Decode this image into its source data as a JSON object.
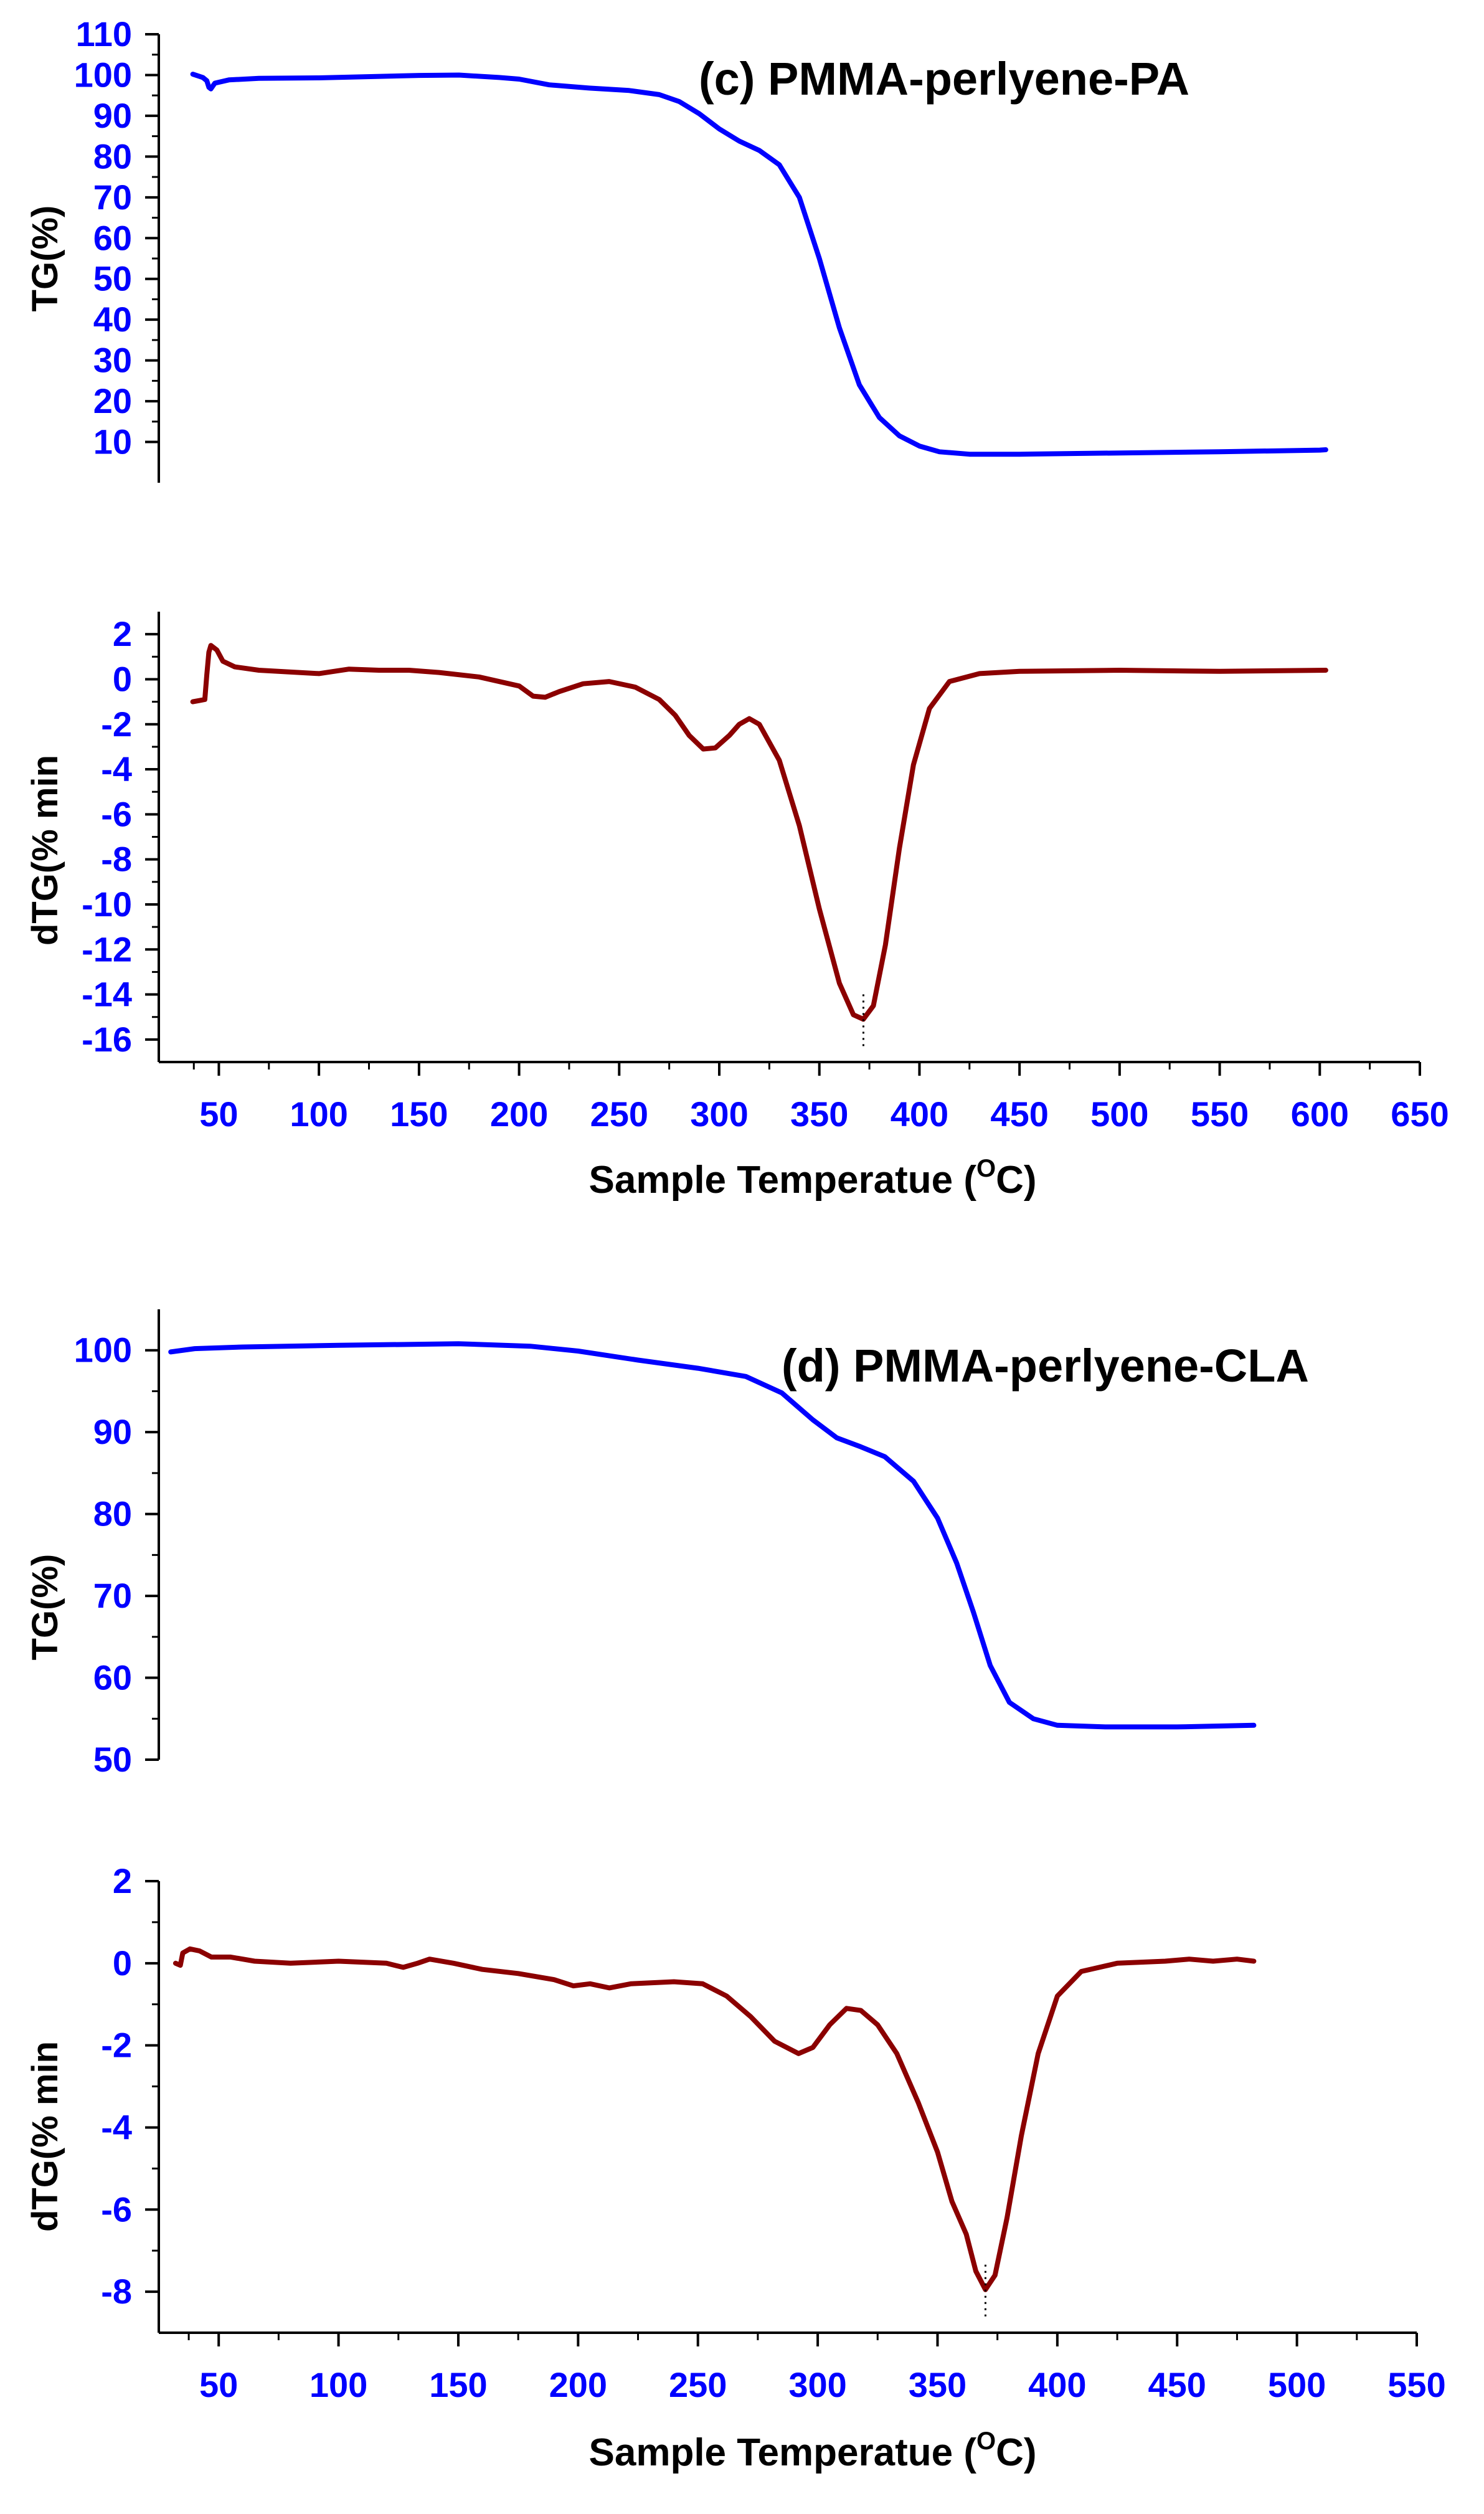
{
  "chart_data": [
    {
      "panel": "c",
      "title": "(c)  PMMA-perlyene-PA",
      "xlabel_main": "Sample Temperatue (",
      "xlabel_sup": "O",
      "xlabel_tail": "C)",
      "xlim": [
        20,
        650
      ],
      "xticks": [
        50,
        100,
        150,
        200,
        250,
        300,
        350,
        400,
        450,
        500,
        550,
        600,
        650
      ],
      "tg": {
        "type": "line",
        "ylabel": "TG(%)",
        "ylim": [
          0,
          110
        ],
        "yticks": [
          10,
          20,
          30,
          40,
          50,
          60,
          70,
          80,
          90,
          100,
          110
        ],
        "color": "#0000ff",
        "points": [
          [
            37,
            100.2
          ],
          [
            42,
            99.4
          ],
          [
            44,
            98.6
          ],
          [
            45,
            97.0
          ],
          [
            46,
            96.6
          ],
          [
            48,
            98.0
          ],
          [
            55,
            98.8
          ],
          [
            70,
            99.2
          ],
          [
            100,
            99.3
          ],
          [
            150,
            99.9
          ],
          [
            170,
            100.0
          ],
          [
            190,
            99.4
          ],
          [
            200,
            99.0
          ],
          [
            215,
            97.6
          ],
          [
            235,
            96.8
          ],
          [
            255,
            96.2
          ],
          [
            270,
            95.2
          ],
          [
            280,
            93.5
          ],
          [
            290,
            90.5
          ],
          [
            300,
            86.8
          ],
          [
            310,
            83.8
          ],
          [
            320,
            81.5
          ],
          [
            330,
            78.0
          ],
          [
            340,
            70.0
          ],
          [
            350,
            55.0
          ],
          [
            360,
            38.0
          ],
          [
            370,
            24.0
          ],
          [
            380,
            16.0
          ],
          [
            390,
            11.5
          ],
          [
            400,
            9.0
          ],
          [
            410,
            7.6
          ],
          [
            425,
            7.0
          ],
          [
            450,
            7.0
          ],
          [
            500,
            7.3
          ],
          [
            550,
            7.6
          ],
          [
            600,
            8.0
          ],
          [
            603,
            8.1
          ]
        ]
      },
      "dtg": {
        "type": "line",
        "ylabel": "dTG(% min",
        "ylim": [
          -17,
          3
        ],
        "yticks": [
          2,
          0,
          -2,
          -4,
          -6,
          -8,
          -10,
          -12,
          -14,
          -16
        ],
        "color": "#8b0000",
        "points": [
          [
            37,
            -1.0
          ],
          [
            40,
            -0.95
          ],
          [
            43,
            -0.9
          ],
          [
            44,
            0.2
          ],
          [
            45,
            1.2
          ],
          [
            46,
            1.5
          ],
          [
            49,
            1.3
          ],
          [
            52,
            0.8
          ],
          [
            58,
            0.55
          ],
          [
            70,
            0.4
          ],
          [
            90,
            0.3
          ],
          [
            100,
            0.25
          ],
          [
            115,
            0.45
          ],
          [
            130,
            0.4
          ],
          [
            145,
            0.4
          ],
          [
            160,
            0.3
          ],
          [
            180,
            0.1
          ],
          [
            195,
            -0.2
          ],
          [
            200,
            -0.3
          ],
          [
            207,
            -0.75
          ],
          [
            213,
            -0.8
          ],
          [
            220,
            -0.55
          ],
          [
            232,
            -0.2
          ],
          [
            245,
            -0.1
          ],
          [
            258,
            -0.35
          ],
          [
            270,
            -0.9
          ],
          [
            278,
            -1.6
          ],
          [
            285,
            -2.5
          ],
          [
            292,
            -3.1
          ],
          [
            298,
            -3.05
          ],
          [
            305,
            -2.5
          ],
          [
            310,
            -2.0
          ],
          [
            315,
            -1.75
          ],
          [
            320,
            -2.0
          ],
          [
            330,
            -3.6
          ],
          [
            340,
            -6.5
          ],
          [
            350,
            -10.2
          ],
          [
            360,
            -13.5
          ],
          [
            367,
            -14.9
          ],
          [
            372,
            -15.1
          ],
          [
            377,
            -14.5
          ],
          [
            383,
            -11.8
          ],
          [
            390,
            -7.5
          ],
          [
            397,
            -3.8
          ],
          [
            405,
            -1.3
          ],
          [
            415,
            -0.1
          ],
          [
            430,
            0.25
          ],
          [
            450,
            0.35
          ],
          [
            500,
            0.4
          ],
          [
            550,
            0.35
          ],
          [
            603,
            0.4
          ]
        ],
        "peak_marker": 372
      }
    },
    {
      "panel": "d",
      "title": "(d) PMMA-perlyene-CLA",
      "xlabel_main": "Sample Temperatue (",
      "xlabel_sup": "O",
      "xlabel_tail": "C)",
      "xlim": [
        25,
        550
      ],
      "xticks": [
        50,
        100,
        150,
        200,
        250,
        300,
        350,
        400,
        450,
        500,
        550
      ],
      "tg": {
        "type": "line",
        "ylabel": "TG(%)",
        "ylim": [
          50,
          105
        ],
        "yticks": [
          50,
          60,
          70,
          80,
          90,
          100
        ],
        "color": "#0000ff",
        "points": [
          [
            30,
            99.8
          ],
          [
            40,
            100.2
          ],
          [
            60,
            100.4
          ],
          [
            100,
            100.6
          ],
          [
            150,
            100.8
          ],
          [
            180,
            100.5
          ],
          [
            200,
            99.9
          ],
          [
            225,
            98.8
          ],
          [
            250,
            97.8
          ],
          [
            270,
            96.8
          ],
          [
            285,
            94.8
          ],
          [
            298,
            91.5
          ],
          [
            308,
            89.3
          ],
          [
            318,
            88.2
          ],
          [
            328,
            87.0
          ],
          [
            340,
            84.0
          ],
          [
            350,
            79.5
          ],
          [
            358,
            74.0
          ],
          [
            365,
            68.0
          ],
          [
            372,
            61.5
          ],
          [
            380,
            57.0
          ],
          [
            390,
            55.0
          ],
          [
            400,
            54.2
          ],
          [
            420,
            54.0
          ],
          [
            450,
            54.0
          ],
          [
            482,
            54.2
          ]
        ]
      },
      "dtg": {
        "type": "line",
        "ylabel": "dTG(% min",
        "ylim": [
          -9,
          2
        ],
        "yticks": [
          2,
          0,
          -2,
          -4,
          -6,
          -8
        ],
        "color": "#8b0000",
        "points": [
          [
            32,
            0.0
          ],
          [
            34,
            -0.05
          ],
          [
            35,
            0.25
          ],
          [
            38,
            0.35
          ],
          [
            42,
            0.3
          ],
          [
            47,
            0.15
          ],
          [
            55,
            0.15
          ],
          [
            65,
            0.05
          ],
          [
            80,
            0.0
          ],
          [
            100,
            0.05
          ],
          [
            120,
            0.0
          ],
          [
            127,
            -0.1
          ],
          [
            133,
            0.0
          ],
          [
            138,
            0.1
          ],
          [
            148,
            0.0
          ],
          [
            160,
            -0.15
          ],
          [
            175,
            -0.25
          ],
          [
            190,
            -0.4
          ],
          [
            198,
            -0.55
          ],
          [
            205,
            -0.5
          ],
          [
            213,
            -0.6
          ],
          [
            222,
            -0.5
          ],
          [
            240,
            -0.45
          ],
          [
            252,
            -0.5
          ],
          [
            262,
            -0.8
          ],
          [
            272,
            -1.3
          ],
          [
            282,
            -1.9
          ],
          [
            292,
            -2.2
          ],
          [
            298,
            -2.05
          ],
          [
            305,
            -1.5
          ],
          [
            312,
            -1.1
          ],
          [
            318,
            -1.15
          ],
          [
            325,
            -1.5
          ],
          [
            333,
            -2.2
          ],
          [
            342,
            -3.4
          ],
          [
            350,
            -4.6
          ],
          [
            356,
            -5.8
          ],
          [
            362,
            -6.6
          ],
          [
            366,
            -7.5
          ],
          [
            370,
            -7.95
          ],
          [
            374,
            -7.6
          ],
          [
            379,
            -6.2
          ],
          [
            385,
            -4.2
          ],
          [
            392,
            -2.2
          ],
          [
            400,
            -0.8
          ],
          [
            410,
            -0.2
          ],
          [
            425,
            0.0
          ],
          [
            445,
            0.05
          ],
          [
            455,
            0.1
          ],
          [
            465,
            0.05
          ],
          [
            475,
            0.1
          ],
          [
            482,
            0.05
          ]
        ],
        "peak_marker": 370
      }
    }
  ]
}
